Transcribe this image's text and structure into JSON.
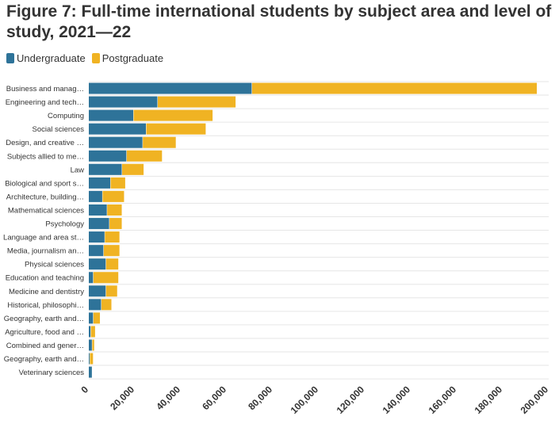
{
  "title": "Figure 7: Full-time international students by subject area and level of study, 2021—22",
  "colors": {
    "undergraduate": "#2e7399",
    "postgraduate": "#f0b323",
    "grid": "#e6e6e6"
  },
  "chart_data": {
    "type": "bar",
    "orientation": "horizontal",
    "stacked": true,
    "title": "Figure 7: Full-time international students by subject area and level of study, 2021—22",
    "legend_position": "top-left",
    "grid": true,
    "xlim": [
      0,
      200000
    ],
    "x_ticks": [
      "0",
      "20,000",
      "40,000",
      "60,000",
      "80,000",
      "100,000",
      "120,000",
      "140,000",
      "160,000",
      "180,000",
      "200,000"
    ],
    "categories": [
      "Business and manag…",
      "Engineering and tech…",
      "Computing",
      "Social sciences",
      "Design, and creative …",
      "Subjects allied to me…",
      "Law",
      "Biological and sport s…",
      "Architecture, building…",
      "Mathematical sciences",
      "Psychology",
      "Language and area st…",
      "Media, journalism an…",
      "Physical sciences",
      "Education and teaching",
      "Medicine and dentistry",
      "Historical, philosophi…",
      "Geography, earth and…",
      "Agriculture, food and …",
      "Combined and gener…",
      "Geography, earth and…",
      "Veterinary sciences"
    ],
    "series": [
      {
        "name": "Undergraduate",
        "values": [
          71000,
          30000,
          19500,
          25000,
          23500,
          16500,
          14500,
          9500,
          6000,
          8000,
          9000,
          7000,
          6500,
          7500,
          2000,
          7500,
          5500,
          2000,
          900,
          1500,
          500,
          1500
        ]
      },
      {
        "name": "Postgraduate",
        "values": [
          124000,
          34000,
          34500,
          26000,
          14500,
          15500,
          9500,
          6500,
          9500,
          6500,
          5500,
          6500,
          7000,
          5500,
          11000,
          5000,
          4500,
          3000,
          2000,
          1000,
          1500,
          0
        ]
      }
    ]
  }
}
